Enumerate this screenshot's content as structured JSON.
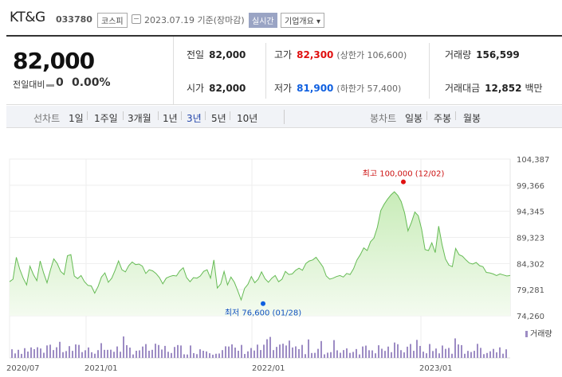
{
  "header": {
    "name": "KT&G",
    "code": "033780",
    "market": "코스피",
    "date": "2023.07.19 기준(장마감)",
    "realtime": "실시간",
    "company": "기업개요 ▾"
  },
  "summary": {
    "price": "82,000",
    "change_label": "전일대비",
    "change_value": "0",
    "change_pct": "0.00%",
    "prev": {
      "label": "전일",
      "value": "82,000"
    },
    "open": {
      "label": "시가",
      "value": "82,000"
    },
    "high": {
      "label": "고가",
      "value": "82,300",
      "sub": "(상한가 106,600)"
    },
    "low": {
      "label": "저가",
      "value": "81,900",
      "sub": "(하한가 57,400)"
    },
    "volume": {
      "label": "거래량",
      "value": "156,599"
    },
    "amount": {
      "label": "거래대금",
      "value": "12,852",
      "unit": "백만"
    }
  },
  "periods": {
    "line_label": "선차트",
    "line_items": [
      "1일",
      "1주일",
      "3개월",
      "1년",
      "3년",
      "5년",
      "10년"
    ],
    "active": "3년",
    "candle_label": "봉차트",
    "candle_items": [
      "일봉",
      "주봉",
      "월봉"
    ]
  },
  "chart_data": {
    "type": "area",
    "y_ticks": [
      "104,387",
      "99,366",
      "94,345",
      "89,323",
      "84,302",
      "79,281",
      "74,260"
    ],
    "ylim": [
      74260,
      104387
    ],
    "x_ticks": [
      "2020/07",
      "2021/01",
      "2022/01",
      "2023/01"
    ],
    "high_label": "최고 100,000 (12/02)",
    "low_label": "최저 76,600 (01/28)",
    "volume_label": "거래량",
    "values": [
      80800,
      81300,
      85500,
      83200,
      81500,
      80200,
      83800,
      82200,
      81000,
      84800,
      82500,
      80600,
      83100,
      85200,
      84300,
      82800,
      82200,
      85800,
      86000,
      81900,
      81400,
      82000,
      80800,
      80100,
      80000,
      78600,
      79900,
      81700,
      82500,
      80700,
      81500,
      83000,
      84800,
      83100,
      82700,
      83900,
      84600,
      84100,
      84200,
      83800,
      82400,
      83100,
      82900,
      82400,
      81600,
      80400,
      81500,
      81800,
      82000,
      81900,
      82900,
      83500,
      81600,
      80800,
      81600,
      81500,
      81900,
      82800,
      83100,
      81500,
      85000,
      79600,
      80400,
      82800,
      80200,
      81700,
      80700,
      79100,
      77300,
      79500,
      80300,
      81800,
      80600,
      81300,
      82700,
      81400,
      80700,
      81500,
      82000,
      80800,
      81300,
      82800,
      82200,
      82300,
      83000,
      83400,
      83000,
      84300,
      84800,
      85000,
      85500,
      84600,
      83700,
      81900,
      81300,
      81500,
      81800,
      82000,
      81700,
      82400,
      82200,
      83300,
      85000,
      86000,
      87300,
      86800,
      88500,
      89200,
      91300,
      94500,
      95700,
      96700,
      97500,
      98100,
      97400,
      96200,
      94000,
      90600,
      92200,
      94200,
      93500,
      90900,
      87000,
      86800,
      88300,
      86400,
      91500,
      87900,
      85200,
      84000,
      83700,
      87200,
      86000,
      85700,
      85000,
      84400,
      84200,
      84500,
      83900,
      83700,
      82600,
      82500,
      82300,
      82000,
      82300,
      82100,
      81900,
      82000
    ]
  }
}
